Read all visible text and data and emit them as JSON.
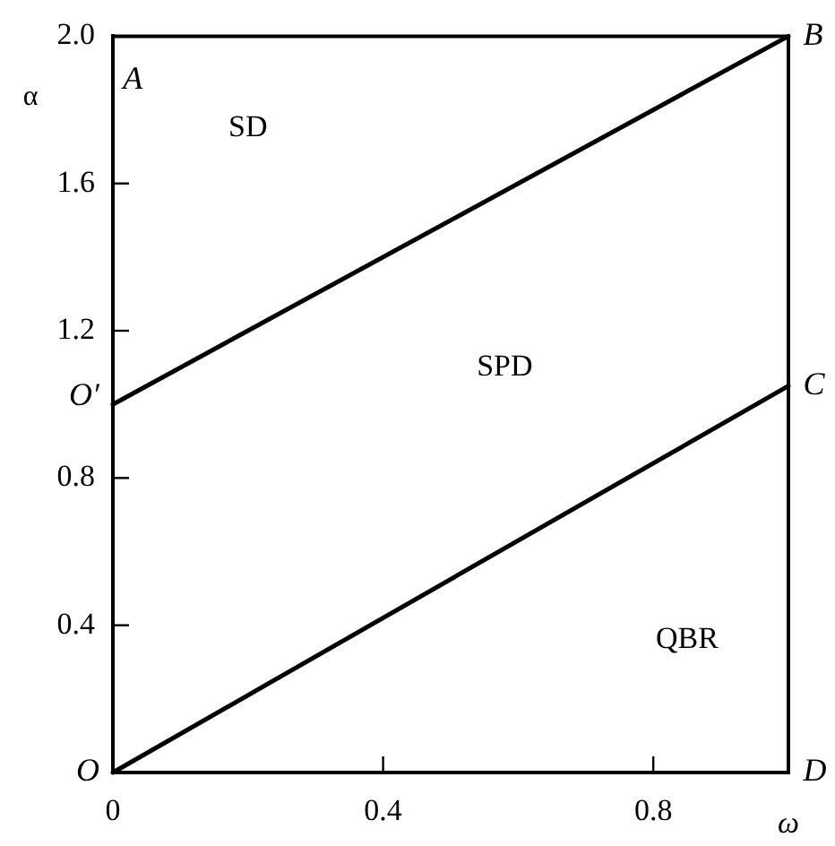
{
  "chart_data": {
    "type": "line",
    "xlabel": "ω",
    "ylabel": "α",
    "x": [
      0,
      1
    ],
    "series": [
      {
        "color": "#000000",
        "values": [
          1,
          2
        ]
      },
      {
        "color": "#000000",
        "values": [
          0,
          1.05
        ]
      }
    ],
    "xlim": [
      0,
      1
    ],
    "xticks": [
      0,
      0.4,
      0.8
    ],
    "ylim": [
      0,
      2
    ],
    "yticks": [
      0.4,
      0.8,
      1.2,
      1.6,
      {
        "value": 2,
        "label": "2.0"
      }
    ],
    "grid": false,
    "legend": false,
    "marker": "none",
    "line_style": "solid",
    "annotations": [
      "A",
      "B",
      "C",
      "D",
      "O",
      "O′",
      "SD",
      "SPD",
      "QBR"
    ]
  }
}
